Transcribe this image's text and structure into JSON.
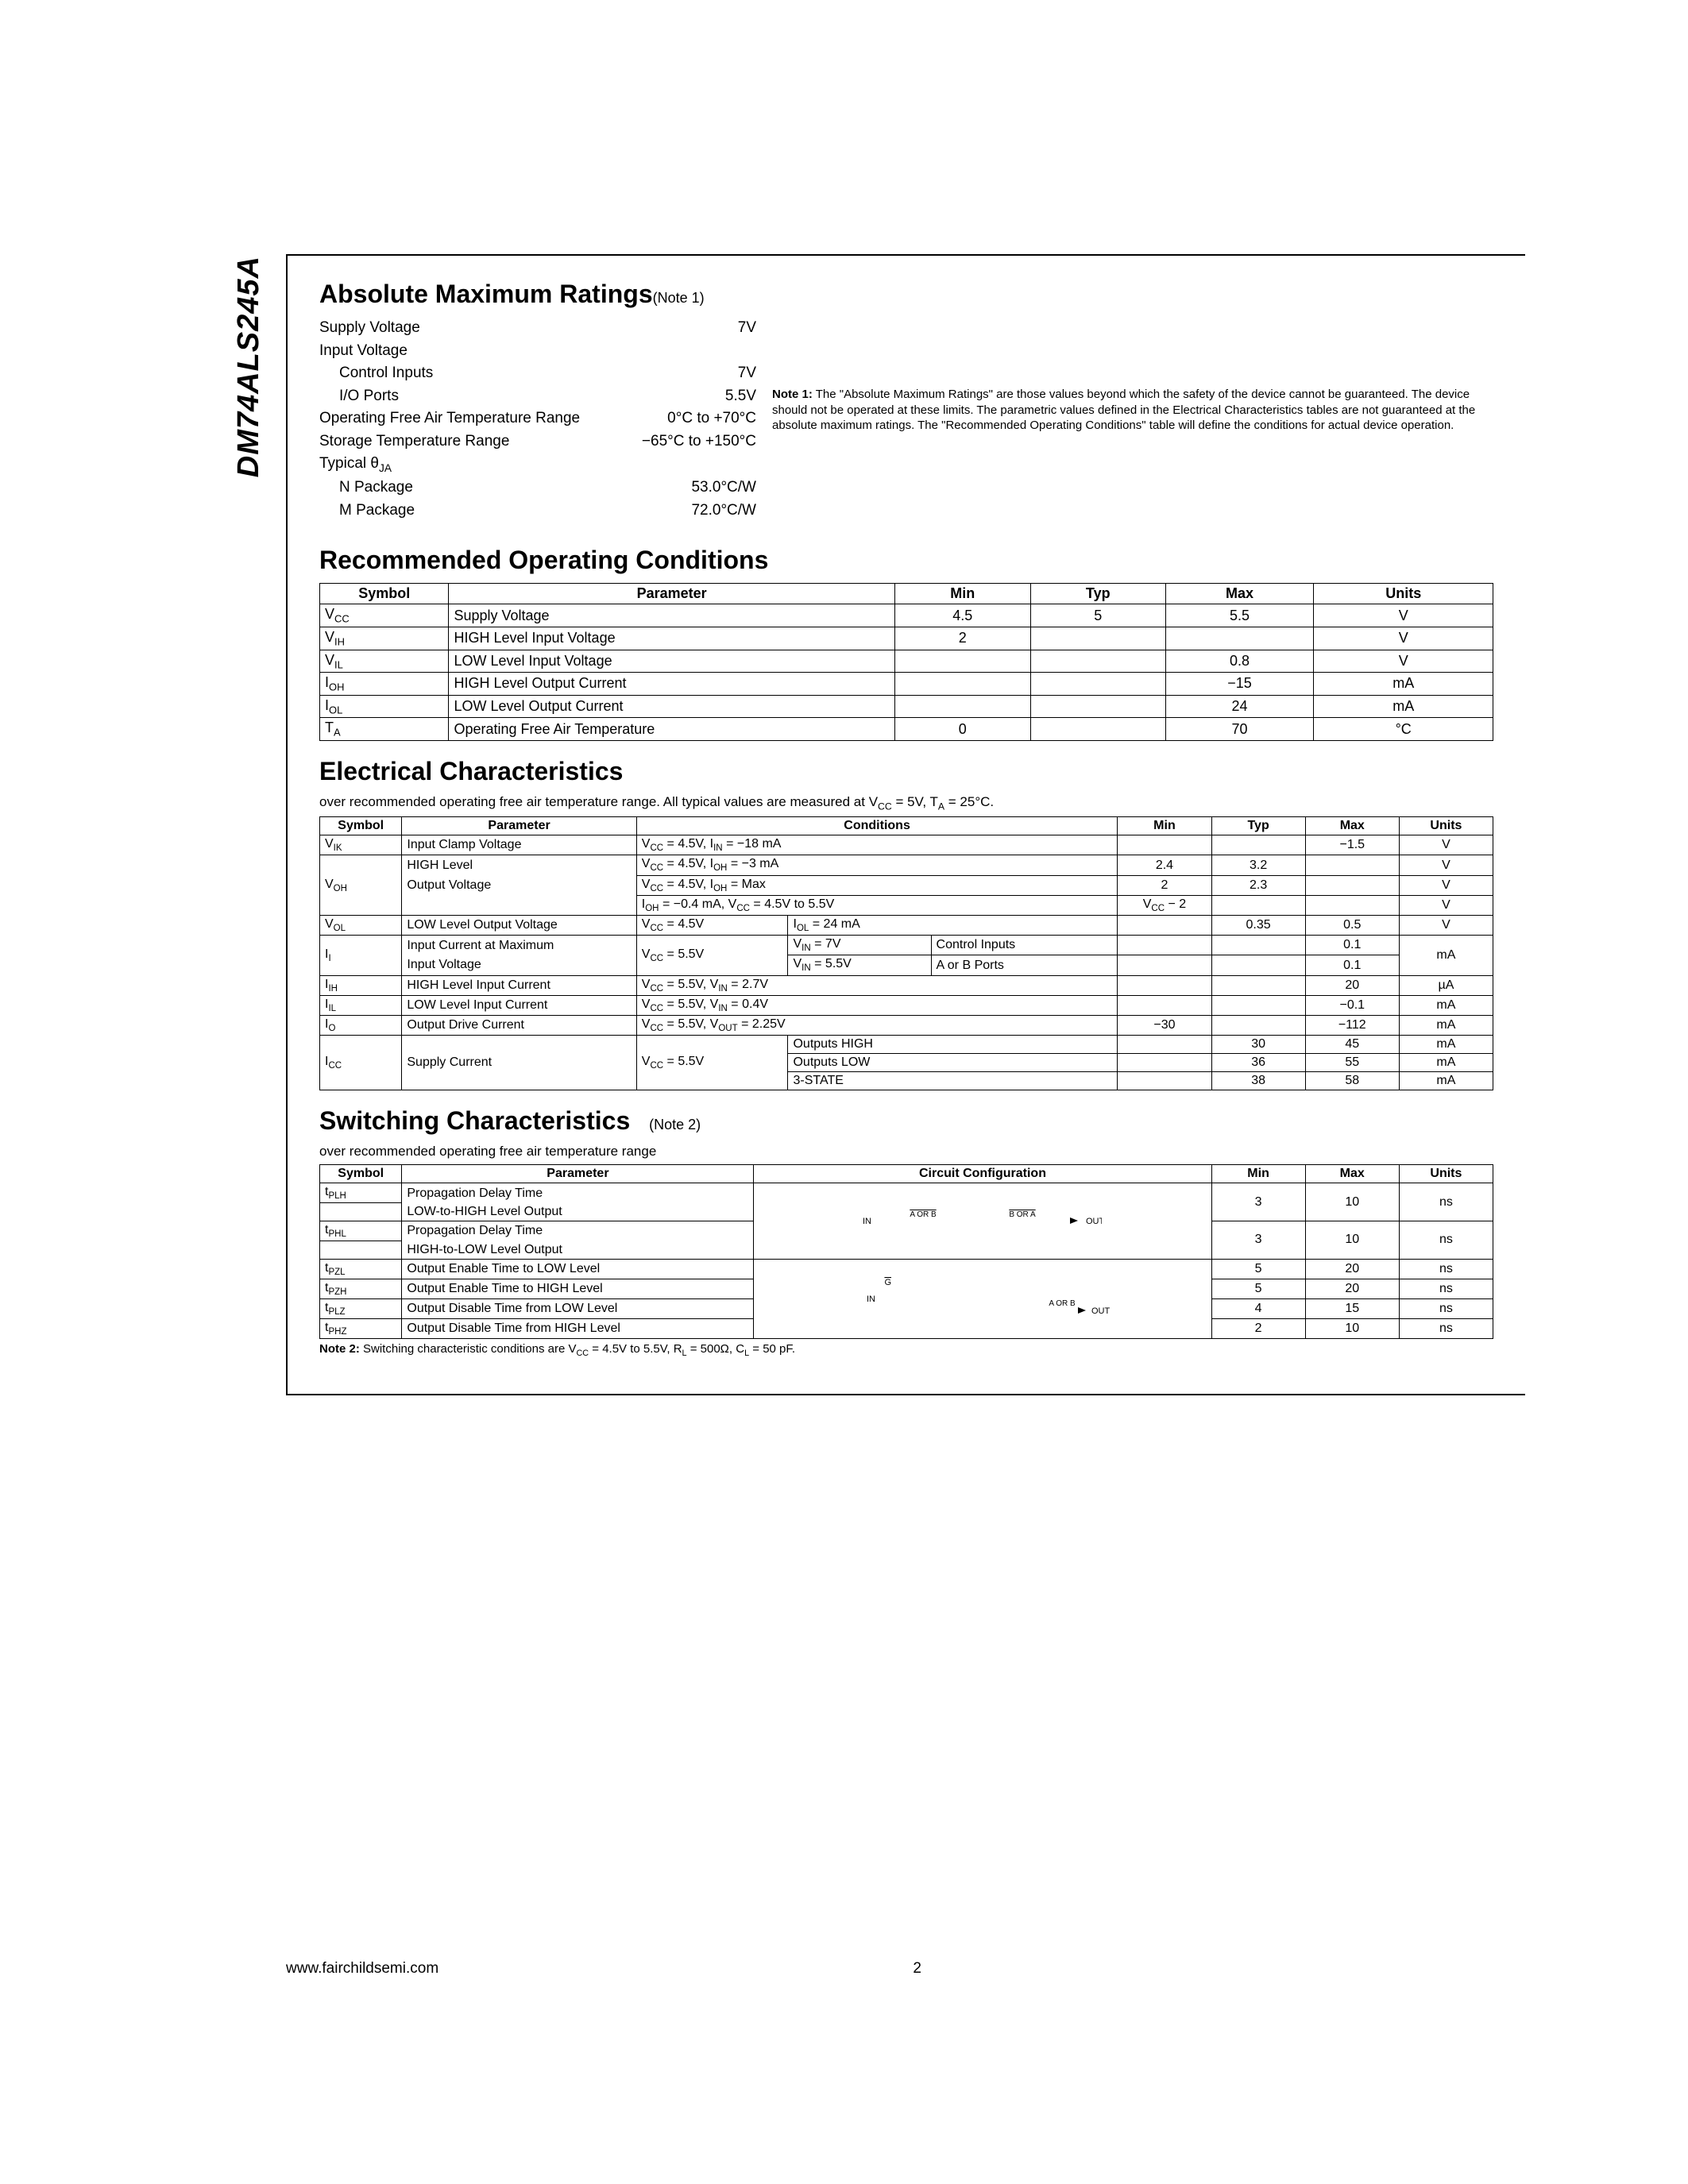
{
  "partNumber": "DM74ALS245A",
  "pageNum": "2",
  "footerUrl": "www.fairchildsemi.com",
  "abs": {
    "title": "Absolute Maximum Ratings",
    "noteRef": "(Note 1)",
    "rows": [
      {
        "label": "Supply Voltage",
        "value": "7V",
        "indent": 0
      },
      {
        "label": "Input Voltage",
        "value": "",
        "indent": 0
      },
      {
        "label": "Control Inputs",
        "value": "7V",
        "indent": 1
      },
      {
        "label": "I/O Ports",
        "value": "5.5V",
        "indent": 1
      },
      {
        "label": "Operating Free Air Temperature Range",
        "value": "0°C to +70°C",
        "indent": 0
      },
      {
        "label": "Storage Temperature Range",
        "value": "−65°C to +150°C",
        "indent": 0
      },
      {
        "label": "Typical θ",
        "sub": "JA",
        "value": "",
        "indent": 0
      },
      {
        "label": "N Package",
        "value": "53.0°C/W",
        "indent": 1
      },
      {
        "label": "M Package",
        "value": "72.0°C/W",
        "indent": 1
      }
    ],
    "noteLabel": "Note 1:",
    "noteText": "The \"Absolute Maximum Ratings\" are those values beyond which the safety of the device cannot be guaranteed. The device should not be operated at these limits. The parametric values defined in the Electrical Characteristics tables are not guaranteed at the absolute maximum ratings. The \"Recommended Operating Conditions\" table will define the conditions for actual device operation."
  },
  "roc": {
    "title": "Recommended Operating Conditions",
    "headers": [
      "Symbol",
      "Parameter",
      "Min",
      "Typ",
      "Max",
      "Units"
    ],
    "rows": [
      {
        "sym": "V",
        "sub": "CC",
        "param": "Supply Voltage",
        "min": "4.5",
        "typ": "5",
        "max": "5.5",
        "units": "V"
      },
      {
        "sym": "V",
        "sub": "IH",
        "param": "HIGH Level Input Voltage",
        "min": "2",
        "typ": "",
        "max": "",
        "units": "V"
      },
      {
        "sym": "V",
        "sub": "IL",
        "param": "LOW Level Input Voltage",
        "min": "",
        "typ": "",
        "max": "0.8",
        "units": "V"
      },
      {
        "sym": "I",
        "sub": "OH",
        "param": "HIGH Level Output Current",
        "min": "",
        "typ": "",
        "max": "−15",
        "units": "mA"
      },
      {
        "sym": "I",
        "sub": "OL",
        "param": "LOW Level Output Current",
        "min": "",
        "typ": "",
        "max": "24",
        "units": "mA"
      },
      {
        "sym": "T",
        "sub": "A",
        "param": "Operating Free Air Temperature",
        "min": "0",
        "typ": "",
        "max": "70",
        "units": "°C"
      }
    ]
  },
  "ec": {
    "title": "Electrical Characteristics",
    "subtitle": "over recommended operating free air temperature range. All typical values are measured at V",
    "subtitle_cc": " = 5V, T",
    "subtitle_a": " = 25°C.",
    "headers": [
      "Symbol",
      "Parameter",
      "Conditions",
      "Min",
      "Typ",
      "Max",
      "Units"
    ],
    "r_vik": {
      "sym": "V",
      "sub": "IK",
      "param": "Input Clamp Voltage",
      "cond": "V_CC = 4.5V, I_IN = −18 mA",
      "max": "−1.5",
      "units": "V"
    },
    "r_voh": {
      "sym": "V",
      "sub": "OH",
      "param1": "HIGH Level",
      "param2": "Output Voltage",
      "c1": "V_CC = 4.5V, I_OH = −3 mA",
      "min1": "2.4",
      "typ1": "3.2",
      "u1": "V",
      "c2": "V_CC = 4.5V, I_OH = Max",
      "min2": "2",
      "typ2": "2.3",
      "u2": "V",
      "c3": "I_OH = −0.4 mA, V_CC = 4.5V to 5.5V",
      "min3": "V_CC − 2",
      "u3": "V"
    },
    "r_vol": {
      "sym": "V",
      "sub": "OL",
      "param": "LOW Level Output Voltage",
      "c1": "V_CC = 4.5V",
      "c2": "I_OL = 24 mA",
      "typ": "0.35",
      "max": "0.5",
      "units": "V"
    },
    "r_ii": {
      "sym": "I",
      "sub": "I",
      "param1": "Input Current at Maximum",
      "param2": "Input Voltage",
      "c_vcc": "V_CC = 5.5V",
      "c1a": "V_IN = 7V",
      "c1b": "Control Inputs",
      "max1": "0.1",
      "c2a": "V_IN = 5.5V",
      "c2b": "A or B Ports",
      "max2": "0.1",
      "units": "mA"
    },
    "r_iih": {
      "sym": "I",
      "sub": "IH",
      "param": "HIGH Level Input Current",
      "cond": "V_CC = 5.5V, V_IN = 2.7V",
      "max": "20",
      "units": "µA"
    },
    "r_iil": {
      "sym": "I",
      "sub": "IL",
      "param": "LOW Level Input Current",
      "cond": "V_CC = 5.5V, V_IN = 0.4V",
      "max": "−0.1",
      "units": "mA"
    },
    "r_io": {
      "sym": "I",
      "sub": "O",
      "param": "Output Drive Current",
      "cond": "V_CC = 5.5V, V_OUT = 2.25V",
      "min": "−30",
      "max": "−112",
      "units": "mA"
    },
    "r_icc": {
      "sym": "I",
      "sub": "CC",
      "param": "Supply Current",
      "c_vcc": "V_CC = 5.5V",
      "c1": "Outputs HIGH",
      "typ1": "30",
      "max1": "45",
      "u1": "mA",
      "c2": "Outputs LOW",
      "typ2": "36",
      "max2": "55",
      "u2": "mA",
      "c3": "3-STATE",
      "typ3": "38",
      "max3": "58",
      "u3": "mA"
    }
  },
  "sw": {
    "title": "Switching Characteristics",
    "noteRef": "(Note 2)",
    "subtitle": "over recommended operating free air temperature range",
    "headers": [
      "Symbol",
      "Parameter",
      "Circuit Configuration",
      "Min",
      "Max",
      "Units"
    ],
    "r_tplh": {
      "sym": "t",
      "sub": "PLH",
      "p1": "Propagation Delay Time",
      "p2": "LOW-to-HIGH Level Output",
      "min": "3",
      "max": "10",
      "units": "ns"
    },
    "r_tphl": {
      "sym": "t",
      "sub": "PHL",
      "p1": "Propagation Delay Time",
      "p2": "HIGH-to-LOW Level Output",
      "min": "3",
      "max": "10",
      "units": "ns"
    },
    "r_tpzl": {
      "sym": "t",
      "sub": "PZL",
      "param": "Output Enable Time to LOW Level",
      "min": "5",
      "max": "20",
      "units": "ns"
    },
    "r_tpzh": {
      "sym": "t",
      "sub": "PZH",
      "param": "Output Enable Time to HIGH Level",
      "min": "5",
      "max": "20",
      "units": "ns"
    },
    "r_tplz": {
      "sym": "t",
      "sub": "PLZ",
      "param": "Output Disable Time from LOW Level",
      "min": "4",
      "max": "15",
      "units": "ns"
    },
    "r_tphz": {
      "sym": "t",
      "sub": "PHZ",
      "param": "Output Disable Time from HIGH Level",
      "min": "2",
      "max": "10",
      "units": "ns"
    },
    "note2Label": "Note 2:",
    "note2Text": "Switching characteristic conditions are V_CC = 4.5V to 5.5V, R_L = 500Ω, C_L = 50 pF.",
    "diag1": {
      "in": "IN",
      "a": "A OR B",
      "b": "B OR A",
      "out": "OUT"
    },
    "diag2": {
      "g": "G",
      "in": "IN",
      "ab": "A OR B",
      "out": "OUT"
    }
  },
  "colors": {
    "border": "#000000",
    "bg": "#ffffff",
    "text": "#000000"
  }
}
